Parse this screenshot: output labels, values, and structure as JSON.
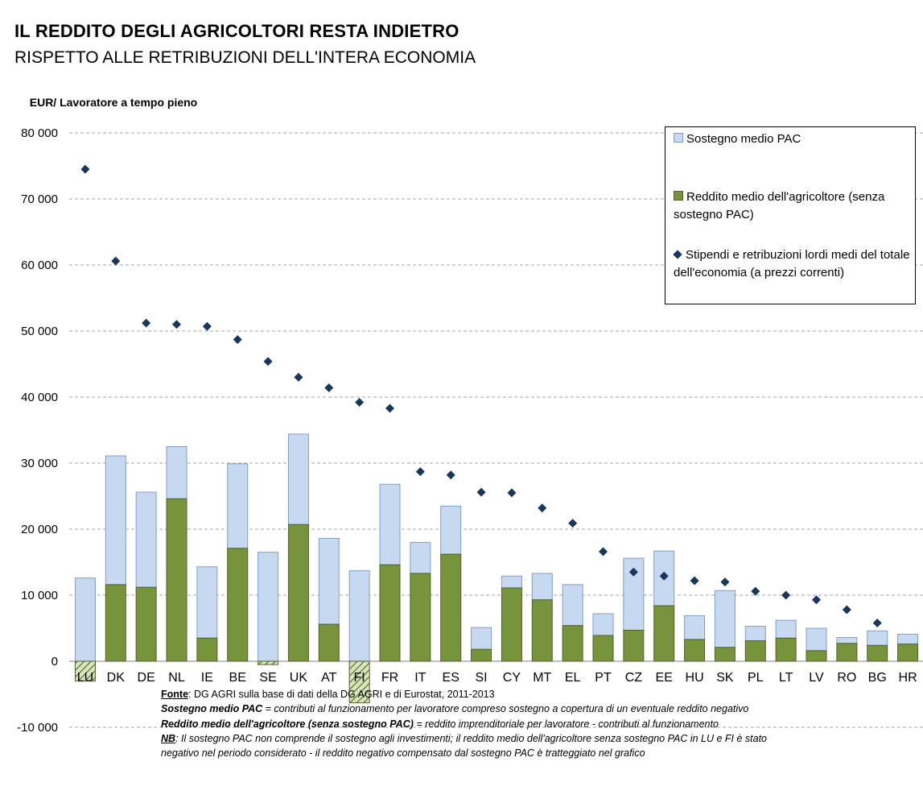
{
  "title": "IL REDDITO DEGLI AGRICOLTORI RESTA INDIETRO",
  "subtitle": "RISPETTO ALLE RETRIBUZIONI  DELL'INTERA ECONOMIA",
  "ylabel": "EUR/ Lavoratore a tempo pieno",
  "colors": {
    "support": "#c6d9f1",
    "support_edge": "#7f9fc9",
    "income": "#77933c",
    "income_edge": "#4f6228",
    "wages": "#17375e"
  },
  "legend": {
    "support": "Sostegno medio PAC",
    "income": "Reddito medio dell'agricoltore (senza sostegno PAC)",
    "wages": "Stipendi e retribuzioni lordi medi del totale dell'economia (a prezzi correnti)"
  },
  "footer": {
    "source_label": "Fonte",
    "source_text": ": DG AGRI sulla base di dati della DG AGRI e di Eurostat, 2011-2013",
    "def1_term": "Sostegno medio PAC",
    "def1_text": " = contributi  al funzionamento per lavoratore compreso sostegno a copertura  di un eventuale reddito negativo",
    "def2_term": "Reddito medio dell'agricoltore  (senza sostegno PAC)",
    "def2_text": " = reddito imprenditoriale  per lavoratore - contributi  al funzionamento",
    "nb_label": "NB",
    "nb_text": ": Il sostegno PAC non comprende  il sostegno agli investimenti; il reddito medio dell'agricoltore  senza sostegno PAC in LU e FI è stato",
    "nb_text2": "negativo nel periodo considerato - il reddito negativo compensato  dal sostegno PAC è tratteggiato nel grafico"
  },
  "chart_data": {
    "type": "bar",
    "stacked": true,
    "categories": [
      "LU",
      "DK",
      "DE",
      "NL",
      "IE",
      "BE",
      "SE",
      "UK",
      "AT",
      "FI",
      "FR",
      "IT",
      "ES",
      "SI",
      "CY",
      "MT",
      "EL",
      "PT",
      "CZ",
      "EE",
      "HU",
      "SK",
      "PL",
      "LT",
      "LV",
      "RO",
      "BG",
      "HR"
    ],
    "series": [
      {
        "name": "Reddito medio dell'agricoltore (senza sostegno PAC)",
        "kind": "bar",
        "values": [
          -3000,
          11600,
          11200,
          24600,
          3500,
          17100,
          -500,
          20700,
          5600,
          -6300,
          14600,
          13300,
          16200,
          1800,
          11100,
          9300,
          5400,
          3900,
          4700,
          8400,
          3300,
          2100,
          3100,
          3500,
          1600,
          2700,
          2400,
          2600
        ]
      },
      {
        "name": "Sostegno medio PAC",
        "kind": "bar",
        "values": [
          12600,
          31100,
          25600,
          32500,
          14300,
          29900,
          16500,
          34400,
          18600,
          13700,
          26800,
          18000,
          23500,
          5100,
          12900,
          13300,
          11600,
          7200,
          15600,
          16700,
          6900,
          10700,
          5300,
          6200,
          5000,
          3600,
          4600,
          4100
        ]
      },
      {
        "name": "Stipendi e retribuzioni lordi medi del totale dell'economia (a prezzi correnti)",
        "kind": "marker",
        "values": [
          74500,
          60600,
          51200,
          51000,
          50700,
          48700,
          45400,
          43000,
          41400,
          39200,
          38300,
          28700,
          28200,
          25600,
          25500,
          23200,
          20900,
          16600,
          13500,
          12900,
          12200,
          12000,
          10600,
          10000,
          9300,
          7800,
          5800,
          null
        ]
      }
    ],
    "support_note": "Support values are bar tops (support covers negative income for LU, FI, SE).",
    "ylim": [
      -10000,
      80000
    ],
    "yticks": [
      "-10 000",
      "0",
      "10 000",
      "20 000",
      "30 000",
      "40 000",
      "50 000",
      "60 000",
      "70 000",
      "80 000"
    ],
    "ytick_values": [
      -10000,
      0,
      10000,
      20000,
      30000,
      40000,
      50000,
      60000,
      70000,
      80000
    ],
    "grid": true,
    "legend_position": "top-right"
  }
}
